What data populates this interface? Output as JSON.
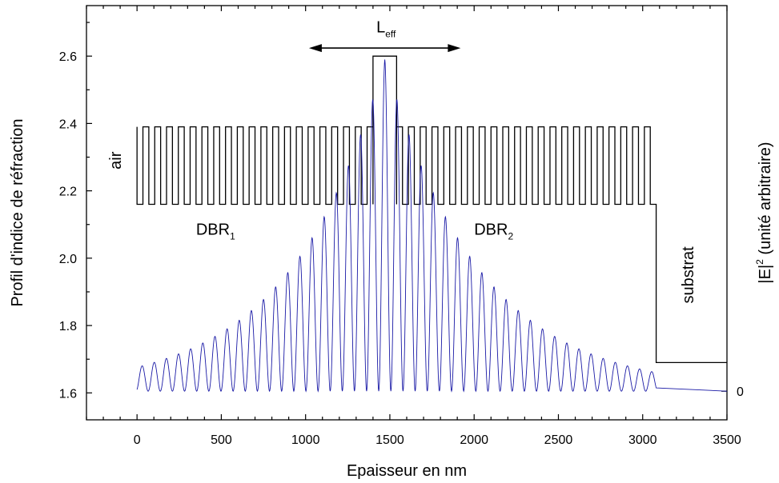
{
  "chart_data": {
    "type": "line",
    "xlabel": "Epaisseur en nm",
    "ylabel": "Profil d'indice de réfraction",
    "y2label": {
      "base": "|E|",
      "sup": "2",
      "rest": " (unité arbitraire)"
    },
    "xlim": [
      -300,
      3500
    ],
    "ylim": [
      1.52,
      2.75
    ],
    "x_ticks": [
      0,
      500,
      1000,
      1500,
      2000,
      2500,
      3000,
      3500
    ],
    "y_ticks": [
      1.6,
      1.8,
      2.0,
      2.2,
      2.4,
      2.6
    ],
    "y2_ticks": [
      {
        "at": 1.605,
        "label": "0"
      }
    ],
    "grid": false,
    "colors": {
      "index": "#000000",
      "field": "#1a1aa6",
      "axis": "#000000"
    },
    "index_profile": {
      "n_high": 2.39,
      "n_low": 2.16,
      "dbr1": {
        "x_start": 0,
        "x_end": 1400,
        "pairs": 20
      },
      "cavity": {
        "x_start": 1400,
        "x_end": 1540,
        "n": 2.6
      },
      "dbr2": {
        "x_start": 1540,
        "x_end": 3080,
        "pairs": 22
      },
      "substrate": {
        "x_start": 3080,
        "n": 1.69
      }
    },
    "field_profile": {
      "x_start": 0,
      "x_end": 3080,
      "center": 1470,
      "period": 72,
      "baseline": 1.605,
      "peak": 2.59,
      "tail_x_end": 3500
    },
    "annotations": {
      "air": "air",
      "dbr1": {
        "base": "DBR",
        "sub": "1"
      },
      "dbr2": {
        "base": "DBR",
        "sub": "2"
      },
      "substrate": "substrat",
      "leff": {
        "base": "L",
        "sub": "eff",
        "x_from": 1020,
        "x_to": 1920
      }
    }
  }
}
